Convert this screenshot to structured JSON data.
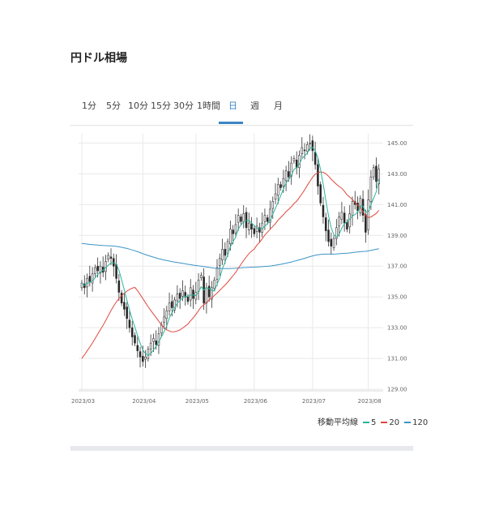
{
  "page": {
    "title": "円ドル相場"
  },
  "tabs": [
    {
      "label": "1分",
      "active": false
    },
    {
      "label": "5分",
      "active": false
    },
    {
      "label": "10分",
      "active": false
    },
    {
      "label": "15分",
      "active": false
    },
    {
      "label": "30分",
      "active": false
    },
    {
      "label": "1時間",
      "active": false
    },
    {
      "label": "日",
      "active": true
    },
    {
      "label": "週",
      "active": false
    },
    {
      "label": "月",
      "active": false
    }
  ],
  "legend": {
    "label": "移動平均線",
    "items": [
      {
        "label": "5",
        "color": "#2bb39a"
      },
      {
        "label": "20",
        "color": "#e0483e"
      },
      {
        "label": "120",
        "color": "#3b94c6"
      }
    ]
  },
  "chart_data": {
    "type": "candlestick",
    "y_ticks": [
      "145.00",
      "143.00",
      "141.00",
      "139.00",
      "137.00",
      "135.00",
      "133.00",
      "131.00",
      "129.00"
    ],
    "ylim": [
      128.9,
      145.6
    ],
    "x_ticks": [
      "2023/03",
      "2023/04",
      "2023/05",
      "2023/06",
      "2023/07",
      "2023/08"
    ],
    "grid": true,
    "colors": {
      "up": "#ffffff",
      "down": "#222222",
      "wick": "#333333",
      "ma5": "#2bb39a",
      "ma20": "#e0483e",
      "ma120": "#3b94c6"
    },
    "months": [
      {
        "month": "2023/03",
        "closes": [
          135.9,
          135.6,
          136.2,
          136.0,
          136.5,
          136.9,
          136.7,
          137.0,
          136.6,
          137.3,
          137.7,
          137.5,
          137.0,
          136.2,
          135.3,
          134.6,
          134.2,
          133.6,
          133.0,
          132.4,
          132.0,
          131.5,
          131.1
        ]
      },
      {
        "month": "2023/04",
        "closes": [
          130.8,
          131.1,
          131.6,
          132.0,
          132.3,
          131.9,
          132.6,
          133.2,
          133.7,
          134.1,
          134.6,
          134.3,
          134.8,
          135.2,
          134.9,
          135.4,
          135.0,
          134.7,
          135.6,
          134.9
        ]
      },
      {
        "month": "2023/05",
        "closes": [
          135.3,
          136.1,
          136.4,
          134.6,
          135.6,
          135.0,
          135.6,
          136.1,
          136.9,
          137.5,
          138.1,
          137.7,
          138.6,
          139.4,
          139.1,
          139.7,
          140.3,
          139.9,
          140.4,
          139.5,
          139.8,
          139.4
        ]
      },
      {
        "month": "2023/06",
        "closes": [
          139.1,
          139.6,
          139.2,
          139.8,
          140.3,
          139.9,
          140.7,
          141.2,
          141.7,
          142.3,
          142.1,
          142.7,
          143.2,
          142.8,
          143.7,
          144.0,
          143.4,
          144.2,
          144.7,
          144.5,
          144.9,
          145.0
        ]
      },
      {
        "month": "2023/07",
        "closes": [
          144.5,
          143.6,
          142.2,
          141.1,
          140.2,
          139.3,
          138.6,
          138.3,
          138.8,
          139.5,
          140.2,
          140.5,
          139.8,
          139.4,
          140.4,
          141.2,
          141.0,
          140.6,
          141.4,
          140.3,
          139.2
        ]
      },
      {
        "month": "2023/08",
        "closes": [
          141.3,
          142.8,
          143.4,
          142.5,
          143.3
        ]
      }
    ],
    "ma120_start": 138.5,
    "ma20_start": 131.0
  }
}
